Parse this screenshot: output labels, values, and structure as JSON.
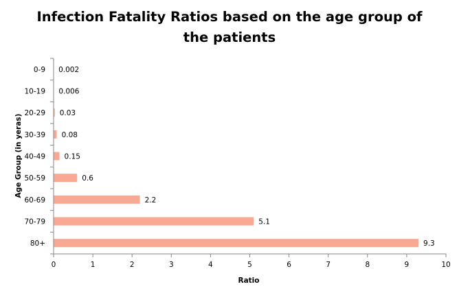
{
  "chart_data": {
    "type": "bar",
    "orientation": "horizontal",
    "title_line1": "Infection Fatality Ratios based on the age group of",
    "title_line2": "the patients",
    "xlabel": "Ratio",
    "ylabel": "Age Group (in yeras)",
    "categories": [
      "0-9",
      "10-19",
      "20-29",
      "30-39",
      "40-49",
      "50-59",
      "60-69",
      "70-79",
      "80+"
    ],
    "values": [
      0.002,
      0.006,
      0.03,
      0.08,
      0.15,
      0.6,
      2.2,
      5.1,
      9.3
    ],
    "data_labels": [
      "0.002",
      "0.006",
      "0.03",
      "0.08",
      "0.15",
      "0.6",
      "2.2",
      "5.1",
      "9.3"
    ],
    "xlim": [
      0,
      10
    ],
    "xticks": [
      0,
      1,
      2,
      3,
      4,
      5,
      6,
      7,
      8,
      9,
      10
    ],
    "grid": false,
    "legend": "none",
    "bar_color": "#F9A893",
    "axis_color": "#868686"
  }
}
